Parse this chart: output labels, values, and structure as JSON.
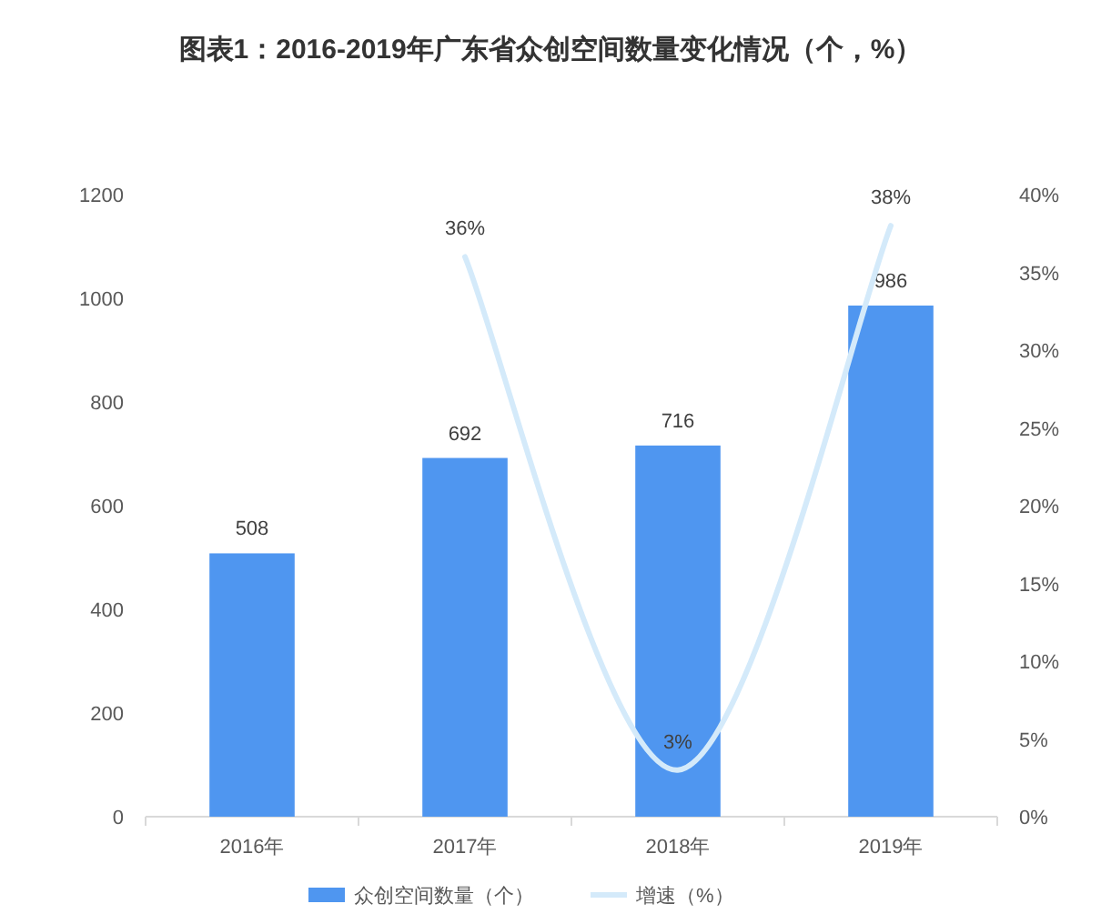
{
  "chart_data": {
    "type": "bar",
    "title": "图表1：2016-2019年广东省众创空间数量变化情况（个，%）",
    "categories": [
      "2016年",
      "2017年",
      "2018年",
      "2019年"
    ],
    "series": [
      {
        "name": "众创空间数量（个）",
        "color": "#4f96f0",
        "values": [
          508,
          692,
          716,
          986
        ],
        "value_labels": [
          "508",
          "692",
          "716",
          "986"
        ]
      },
      {
        "name": "增速（%）",
        "type": "line",
        "axis": "y2",
        "color": "#d4eafa",
        "values": [
          null,
          36,
          3,
          38
        ],
        "value_labels": [
          null,
          "36%",
          "3%",
          "38%"
        ]
      }
    ],
    "ylim": [
      0,
      1200
    ],
    "yticks": [
      0,
      200,
      400,
      600,
      800,
      1000,
      1200
    ],
    "y2lim": [
      0,
      40
    ],
    "y2ticks": [
      {
        "value": 0,
        "label": "0%"
      },
      {
        "value": 5,
        "label": "5%"
      },
      {
        "value": 10,
        "label": "10%"
      },
      {
        "value": 15,
        "label": "15%"
      },
      {
        "value": 20,
        "label": "20%"
      },
      {
        "value": 25,
        "label": "25%"
      },
      {
        "value": 30,
        "label": "30%"
      },
      {
        "value": 35,
        "label": "35%"
      },
      {
        "value": 40,
        "label": "40%"
      }
    ],
    "legend": "bottom",
    "grid": false
  }
}
